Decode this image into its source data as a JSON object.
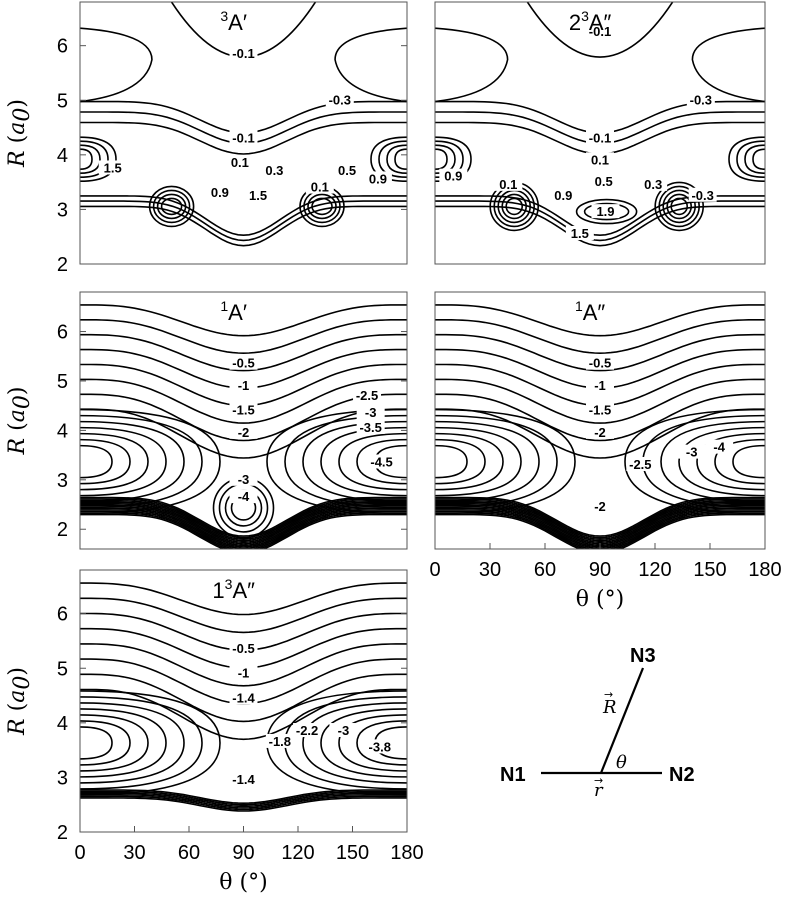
{
  "chart_data": [
    {
      "type": "contour",
      "title": "3A′",
      "title_sup": "3",
      "title_main": "A′",
      "xlim": [
        0,
        180
      ],
      "ylim": [
        2,
        6.8
      ],
      "xlabel": "",
      "ylabel": "R (a0)",
      "yticks": [
        2,
        3,
        4,
        5,
        6
      ],
      "xticks": [],
      "contour_labels": [
        {
          "text": "-0.1",
          "x": 90,
          "y": 5.85
        },
        {
          "text": "-0.3",
          "x": 143,
          "y": 5.0
        },
        {
          "text": "-0.1",
          "x": 90,
          "y": 4.3
        },
        {
          "text": "0.1",
          "x": 88,
          "y": 3.85
        },
        {
          "text": "0.3",
          "x": 107,
          "y": 3.7
        },
        {
          "text": "0.5",
          "x": 147,
          "y": 3.7
        },
        {
          "text": "0.9",
          "x": 164,
          "y": 3.55
        },
        {
          "text": "1.5",
          "x": 18,
          "y": 3.75
        },
        {
          "text": "0.9",
          "x": 77,
          "y": 3.3
        },
        {
          "text": "1.5",
          "x": 98,
          "y": 3.25
        },
        {
          "text": "0.1",
          "x": 132,
          "y": 3.4
        }
      ]
    },
    {
      "type": "contour",
      "title": "23A″",
      "title_pre": "2",
      "title_sup": "3",
      "title_main": "A″",
      "xlim": [
        0,
        180
      ],
      "ylim": [
        2,
        6.8
      ],
      "xlabel": "",
      "ylabel": "",
      "yticks": [],
      "xticks": [],
      "contour_labels": [
        {
          "text": "-0.1",
          "x": 90,
          "y": 6.25
        },
        {
          "text": "-0.3",
          "x": 145,
          "y": 5.0
        },
        {
          "text": "-0.1",
          "x": 90,
          "y": 4.3
        },
        {
          "text": "0.1",
          "x": 90,
          "y": 3.9
        },
        {
          "text": "0.9",
          "x": 10,
          "y": 3.6
        },
        {
          "text": "0.1",
          "x": 40,
          "y": 3.45
        },
        {
          "text": "0.5",
          "x": 92,
          "y": 3.5
        },
        {
          "text": "0.3",
          "x": 119,
          "y": 3.45
        },
        {
          "text": "0.9",
          "x": 70,
          "y": 3.25
        },
        {
          "text": "-0.3",
          "x": 146,
          "y": 3.25
        },
        {
          "text": "1.9",
          "x": 93,
          "y": 2.95
        },
        {
          "text": "1.5",
          "x": 79,
          "y": 2.55
        }
      ]
    },
    {
      "type": "contour",
      "title": "1A′",
      "title_sup": "1",
      "title_main": "A′",
      "xlim": [
        0,
        180
      ],
      "ylim": [
        1.6,
        6.8
      ],
      "xlabel": "",
      "ylabel": "R (a0)",
      "yticks": [
        2,
        3,
        4,
        5,
        6
      ],
      "xticks": [],
      "contour_labels": [
        {
          "text": "-0.5",
          "x": 90,
          "y": 5.35
        },
        {
          "text": "-1",
          "x": 90,
          "y": 4.9
        },
        {
          "text": "-1.5",
          "x": 90,
          "y": 4.4
        },
        {
          "text": "-2",
          "x": 90,
          "y": 3.95
        },
        {
          "text": "-2.5",
          "x": 158,
          "y": 4.7
        },
        {
          "text": "-3",
          "x": 160,
          "y": 4.35
        },
        {
          "text": "-3.5",
          "x": 160,
          "y": 4.05
        },
        {
          "text": "-4.5",
          "x": 166,
          "y": 3.35
        },
        {
          "text": "-3",
          "x": 90,
          "y": 3.0
        },
        {
          "text": "-4",
          "x": 90,
          "y": 2.65
        }
      ]
    },
    {
      "type": "contour",
      "title": "1A″",
      "title_sup": "1",
      "title_main": "A″",
      "xlim": [
        0,
        180
      ],
      "ylim": [
        1.6,
        6.8
      ],
      "xlabel": "θ (°)",
      "ylabel": "",
      "yticks": [],
      "xticks": [
        0,
        30,
        60,
        90,
        120,
        150,
        180
      ],
      "contour_labels": [
        {
          "text": "-0.5",
          "x": 90,
          "y": 5.35
        },
        {
          "text": "-1",
          "x": 90,
          "y": 4.9
        },
        {
          "text": "-1.5",
          "x": 90,
          "y": 4.4
        },
        {
          "text": "-2",
          "x": 90,
          "y": 3.95
        },
        {
          "text": "-2.5",
          "x": 112,
          "y": 3.3
        },
        {
          "text": "-3",
          "x": 140,
          "y": 3.55
        },
        {
          "text": "-4",
          "x": 155,
          "y": 3.65
        },
        {
          "text": "-2",
          "x": 90,
          "y": 2.45
        }
      ]
    },
    {
      "type": "contour",
      "title": "13A″",
      "title_pre": "1",
      "title_sup": "3",
      "title_main": "A″",
      "xlim": [
        0,
        180
      ],
      "ylim": [
        2,
        6.8
      ],
      "xlabel": "θ (°)",
      "ylabel": "R (a0)",
      "yticks": [
        2,
        3,
        4,
        5,
        6
      ],
      "xticks": [
        0,
        30,
        60,
        90,
        120,
        150,
        180
      ],
      "contour_labels": [
        {
          "text": "-0.5",
          "x": 90,
          "y": 5.35
        },
        {
          "text": "-1",
          "x": 90,
          "y": 4.9
        },
        {
          "text": "-1.4",
          "x": 90,
          "y": 4.45
        },
        {
          "text": "-1.8",
          "x": 110,
          "y": 3.65
        },
        {
          "text": "-2.2",
          "x": 125,
          "y": 3.85
        },
        {
          "text": "-3",
          "x": 145,
          "y": 3.85
        },
        {
          "text": "-3.8",
          "x": 165,
          "y": 3.55
        },
        {
          "text": "-1.4",
          "x": 90,
          "y": 2.95
        }
      ]
    }
  ],
  "diagram": {
    "atoms": [
      "N1",
      "N2",
      "N3"
    ],
    "vector_R": "R",
    "vector_r": "r",
    "angle": "θ"
  },
  "axis_text": {
    "R_italic": "R",
    "a0_open": " (",
    "a0_italic": "a",
    "a0_sub": "0",
    "a0_close": ")",
    "theta_label": "θ (°)"
  }
}
